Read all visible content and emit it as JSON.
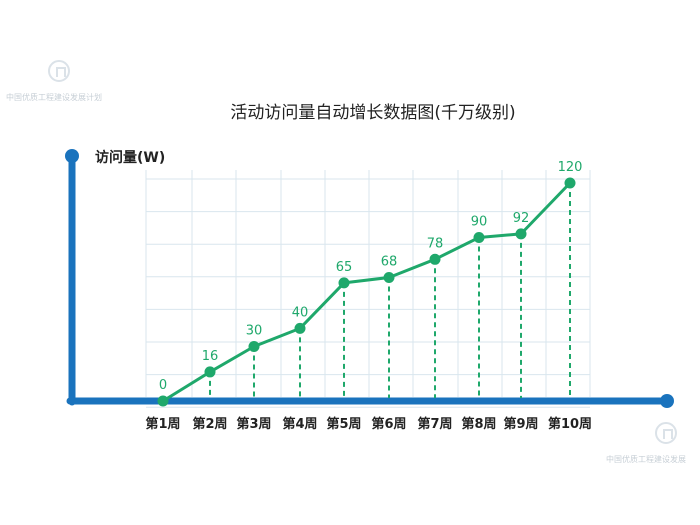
{
  "watermark": {
    "text": "中国优质工程建设发展计划",
    "text_br": "中国优质工程建设发展"
  },
  "colors": {
    "axis": "#1a73bd",
    "line": "#1fa86b",
    "grid": "#d9e6ee",
    "text": "#222222"
  },
  "chart_data": {
    "type": "line",
    "title": "活动访问量自动增长数据图(千万级别)",
    "ylabel": "访问量(W)",
    "xlabel": "",
    "categories": [
      "第1周",
      "第2周",
      "第3周",
      "第4周",
      "第5周",
      "第6周",
      "第7周",
      "第8周",
      "第9周",
      "第10周"
    ],
    "values": [
      0,
      16,
      30,
      40,
      65,
      68,
      78,
      90,
      92,
      120
    ],
    "ylim": [
      0,
      120
    ],
    "grid": true,
    "data_labels": true
  }
}
